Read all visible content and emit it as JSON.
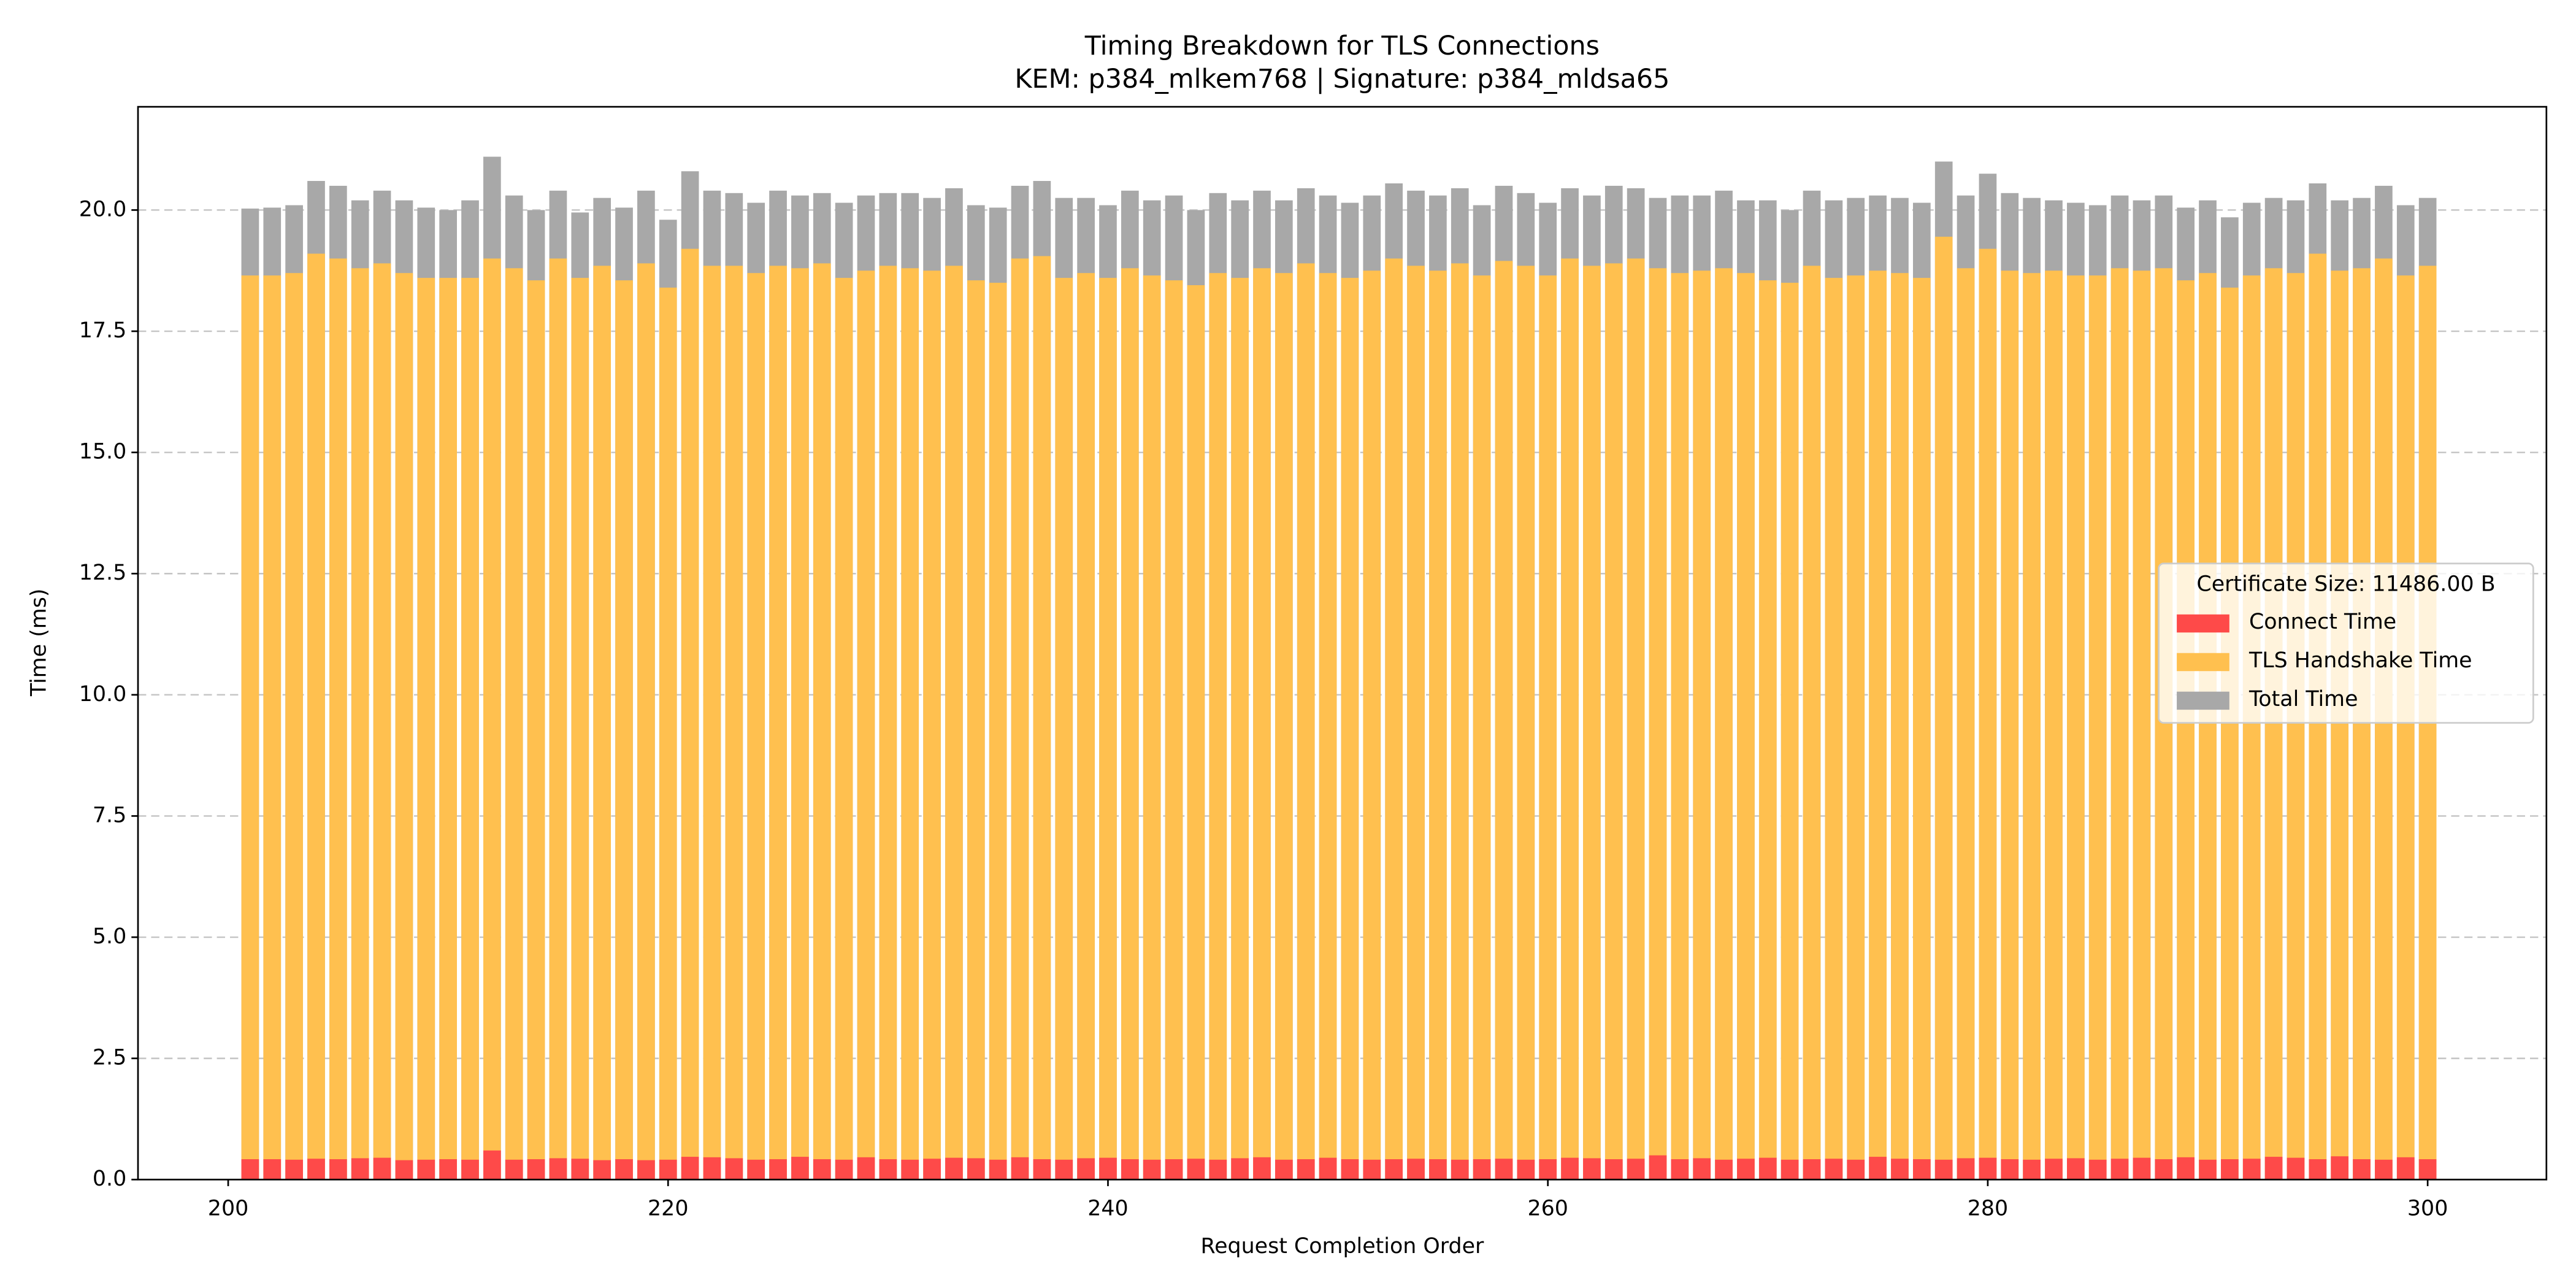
{
  "chart_data": {
    "type": "bar",
    "overlap": true,
    "title": "Timing Breakdown for TLS Connections",
    "subtitle": "KEM: p384_mlkem768 | Signature: p384_mldsa65",
    "x_label": "Request Completion Order",
    "y_label": "Time (ms)",
    "legend_title": "Certificate Size: 11486.00 B",
    "legend_position": "right",
    "grid": true,
    "xlim": [
      195.9,
      305.4
    ],
    "xticks": [
      200,
      220,
      240,
      260,
      280,
      300
    ],
    "ylim": [
      0,
      22.13
    ],
    "yticks": [
      {
        "value": 0,
        "label": "0.0"
      },
      2.5,
      {
        "value": 5,
        "label": "5.0"
      },
      7.5,
      {
        "value": 10,
        "label": "10.0"
      },
      12.5,
      {
        "value": 15,
        "label": "15.0"
      },
      17.5,
      {
        "value": 20,
        "label": "20.0"
      }
    ],
    "x": [
      201,
      202,
      203,
      204,
      205,
      206,
      207,
      208,
      209,
      210,
      211,
      212,
      213,
      214,
      215,
      216,
      217,
      218,
      219,
      220,
      221,
      222,
      223,
      224,
      225,
      226,
      227,
      228,
      229,
      230,
      231,
      232,
      233,
      234,
      235,
      236,
      237,
      238,
      239,
      240,
      241,
      242,
      243,
      244,
      245,
      246,
      247,
      248,
      249,
      250,
      251,
      252,
      253,
      254,
      255,
      256,
      257,
      258,
      259,
      260,
      261,
      262,
      263,
      264,
      265,
      266,
      267,
      268,
      269,
      270,
      271,
      272,
      273,
      274,
      275,
      276,
      277,
      278,
      279,
      280,
      281,
      282,
      283,
      284,
      285,
      286,
      287,
      288,
      289,
      290,
      291,
      292,
      293,
      294,
      295,
      296,
      297,
      298,
      299,
      300
    ],
    "series": [
      {
        "name": "Connect Time",
        "color": "#fe4a49",
        "values": [
          0.42,
          0.42,
          0.41,
          0.43,
          0.42,
          0.44,
          0.45,
          0.4,
          0.41,
          0.42,
          0.41,
          0.6,
          0.41,
          0.42,
          0.44,
          0.43,
          0.4,
          0.42,
          0.4,
          0.41,
          0.47,
          0.46,
          0.44,
          0.41,
          0.42,
          0.47,
          0.42,
          0.41,
          0.46,
          0.42,
          0.41,
          0.43,
          0.45,
          0.44,
          0.41,
          0.46,
          0.42,
          0.41,
          0.44,
          0.45,
          0.42,
          0.41,
          0.42,
          0.43,
          0.41,
          0.44,
          0.46,
          0.41,
          0.42,
          0.45,
          0.42,
          0.41,
          0.42,
          0.43,
          0.42,
          0.41,
          0.42,
          0.43,
          0.41,
          0.42,
          0.45,
          0.44,
          0.42,
          0.43,
          0.5,
          0.42,
          0.44,
          0.41,
          0.43,
          0.45,
          0.41,
          0.42,
          0.43,
          0.41,
          0.47,
          0.43,
          0.42,
          0.41,
          0.44,
          0.45,
          0.42,
          0.41,
          0.43,
          0.44,
          0.41,
          0.43,
          0.45,
          0.42,
          0.46,
          0.41,
          0.42,
          0.43,
          0.47,
          0.45,
          0.42,
          0.48,
          0.42,
          0.41,
          0.46,
          0.42
        ]
      },
      {
        "name": "TLS Handshake Time",
        "color": "#ffc04f",
        "values": [
          18.65,
          18.65,
          18.7,
          19.1,
          19.0,
          18.8,
          18.9,
          18.7,
          18.6,
          18.6,
          18.6,
          19.0,
          18.8,
          18.55,
          19.0,
          18.6,
          18.85,
          18.55,
          18.9,
          18.4,
          19.2,
          18.85,
          18.85,
          18.7,
          18.85,
          18.8,
          18.9,
          18.6,
          18.75,
          18.85,
          18.8,
          18.75,
          18.85,
          18.55,
          18.5,
          19.0,
          19.05,
          18.6,
          18.7,
          18.6,
          18.8,
          18.65,
          18.55,
          18.45,
          18.7,
          18.6,
          18.8,
          18.7,
          18.9,
          18.7,
          18.6,
          18.75,
          19.0,
          18.85,
          18.75,
          18.9,
          18.65,
          18.95,
          18.85,
          18.65,
          19.0,
          18.85,
          18.9,
          19.0,
          18.8,
          18.7,
          18.75,
          18.8,
          18.7,
          18.55,
          18.5,
          18.85,
          18.6,
          18.65,
          18.75,
          18.7,
          18.6,
          19.45,
          18.8,
          19.2,
          18.75,
          18.7,
          18.75,
          18.65,
          18.65,
          18.8,
          18.75,
          18.8,
          18.55,
          18.7,
          18.4,
          18.65,
          18.8,
          18.7,
          19.1,
          18.75,
          18.8,
          19.0,
          18.65,
          18.85
        ]
      },
      {
        "name": "Total Time",
        "color": "#a8a8a8",
        "values": [
          20.03,
          20.05,
          20.1,
          20.6,
          20.5,
          20.2,
          20.4,
          20.2,
          20.05,
          20.0,
          20.2,
          21.1,
          20.3,
          20.0,
          20.4,
          19.95,
          20.25,
          20.05,
          20.4,
          19.8,
          20.8,
          20.4,
          20.35,
          20.15,
          20.4,
          20.3,
          20.35,
          20.15,
          20.3,
          20.35,
          20.35,
          20.25,
          20.45,
          20.1,
          20.05,
          20.5,
          20.6,
          20.25,
          20.25,
          20.1,
          20.4,
          20.2,
          20.3,
          20.0,
          20.35,
          20.2,
          20.4,
          20.2,
          20.45,
          20.3,
          20.15,
          20.3,
          20.55,
          20.4,
          20.3,
          20.45,
          20.1,
          20.5,
          20.35,
          20.15,
          20.45,
          20.3,
          20.5,
          20.45,
          20.25,
          20.3,
          20.3,
          20.4,
          20.2,
          20.2,
          20.0,
          20.4,
          20.2,
          20.25,
          20.3,
          20.25,
          20.15,
          21.0,
          20.3,
          20.75,
          20.35,
          20.25,
          20.2,
          20.15,
          20.1,
          20.3,
          20.2,
          20.3,
          20.05,
          20.2,
          19.85,
          20.15,
          20.25,
          20.2,
          20.55,
          20.2,
          20.25,
          20.5,
          20.1,
          20.25
        ]
      }
    ]
  }
}
